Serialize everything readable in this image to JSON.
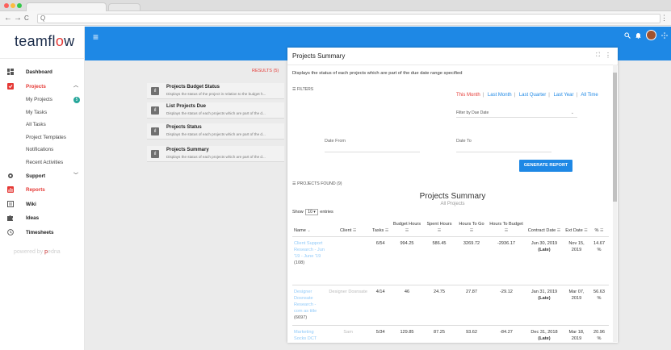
{
  "browser": {
    "address_placeholder": "Q",
    "back": "←",
    "forward": "→",
    "reload": "C",
    "menu": "⋮"
  },
  "sidebar": {
    "logo_left": "teamfl",
    "logo_o": "o",
    "logo_right": "w",
    "items": [
      {
        "label": "Dashboard"
      },
      {
        "label": "Projects"
      },
      {
        "label": "My Projects",
        "badge": "5"
      },
      {
        "label": "My Tasks"
      },
      {
        "label": "All Tasks"
      },
      {
        "label": "Project Templates"
      },
      {
        "label": "Notifications"
      },
      {
        "label": "Recent Activities"
      },
      {
        "label": "Support"
      },
      {
        "label": "Reports"
      },
      {
        "label": "Wiki"
      },
      {
        "label": "Ideas"
      },
      {
        "label": "Timesheets"
      }
    ],
    "powered_prefix": "powered by ",
    "powered_brand": "p",
    "powered_suffix": "edna"
  },
  "topbar": {
    "menu_icon": "≡",
    "search_icon": "🔍",
    "bell_icon": "🔔",
    "apps_icon": "⁘"
  },
  "reports": {
    "results_label": "RESULTS (5)",
    "items": [
      {
        "title": "Projects Budget Status",
        "desc": "Displays the status of the project in relation to the budget h..."
      },
      {
        "title": "List Projects Due",
        "desc": "Displays the status of each projects which are part of the d..."
      },
      {
        "title": "Projects Status",
        "desc": "Displays the status of each projects which are part of the d..."
      },
      {
        "title": "Projects Summary",
        "desc": "Displays the status of each projects which are part of the d..."
      }
    ]
  },
  "modal": {
    "title": "Projects Summary",
    "expand_icon": "⛶",
    "kebab": "⋮",
    "description": "Displays the status of each projects which are part of the due date range specified",
    "filters_label": "FILTERS",
    "ranges": [
      "This Month",
      "Last Month",
      "Last Quarter",
      "Last Year",
      "All Time"
    ],
    "range_separator": "|",
    "filter_by": "Filter by Due Date",
    "date_from": "Date From",
    "date_to": "Date To",
    "generate_button": "GENERATE REPORT",
    "projects_found": "PROJECTS FOUND (9)",
    "summary_title": "Projects Summary",
    "summary_subtitle": "All Projects",
    "show_prefix": "Show",
    "show_value": "10",
    "show_suffix": "entries"
  },
  "table": {
    "headers": [
      "Name",
      "Client",
      "Tasks",
      "Budget Hours",
      "Spent Hours",
      "Hours To Go",
      "Hours To Budget",
      "Contract Date",
      "Ext Date",
      "%"
    ],
    "rows": [
      {
        "name": "Client Support Research - Jun '19 - June '19",
        "name_tag": "(108)",
        "client": "",
        "tasks": "6/54",
        "budget": "994.25",
        "spent": "586.45",
        "togo": "3269.72",
        "tobudget": "-2936.17",
        "contract": "Jun 30, 2019",
        "contract_note": "(Late)",
        "ext": "Nov 15, 2019",
        "pct": "14.67 %"
      },
      {
        "name": "Designer Dosnsate Research - com as title",
        "name_tag": "(6697)",
        "client": "Designer Dosnsate",
        "tasks": "4/14",
        "budget": "46",
        "spent": "24.75",
        "togo": "27.87",
        "tobudget": "-29.12",
        "contract": "Jan 31, 2019",
        "contract_note": "(Late)",
        "ext": "Mar 07, 2019",
        "pct": "56.63 %"
      },
      {
        "name": "Marketing Socks DCT",
        "name_tag": "",
        "client": "Sam",
        "tasks": "5/34",
        "budget": "129.85",
        "spent": "87.25",
        "togo": "93.62",
        "tobudget": "-84.27",
        "contract": "Dec 31, 2018",
        "contract_note": "(Late)",
        "ext": "Mar 18, 2019",
        "pct": "20.96 %"
      }
    ]
  }
}
